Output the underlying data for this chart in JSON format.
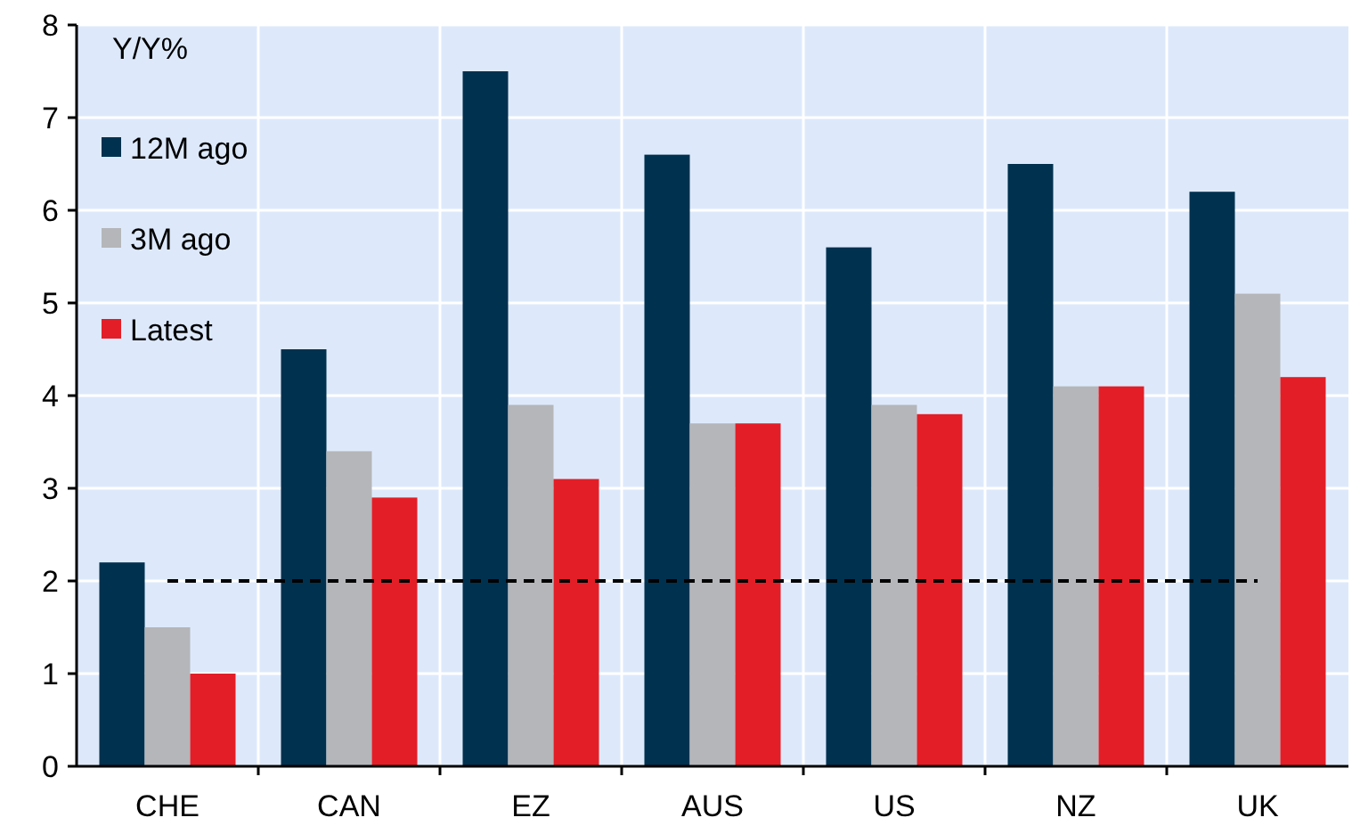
{
  "chart_data": {
    "type": "bar",
    "ylabel": "Y/Y%",
    "categories": [
      "CHE",
      "CAN",
      "EZ",
      "AUS",
      "US",
      "NZ",
      "UK"
    ],
    "series": [
      {
        "name": "12M ago",
        "color": "#00314f",
        "values": [
          2.2,
          4.5,
          7.5,
          6.6,
          5.6,
          6.5,
          6.2
        ]
      },
      {
        "name": "3M ago",
        "color": "#b5b6b9",
        "values": [
          1.5,
          3.4,
          3.9,
          3.7,
          3.9,
          4.1,
          5.1
        ]
      },
      {
        "name": "Latest",
        "color": "#e31e26",
        "values": [
          1.0,
          2.9,
          3.1,
          3.7,
          3.8,
          4.1,
          4.2
        ]
      }
    ],
    "ylim": [
      0,
      8
    ],
    "yticks": [
      0,
      1,
      2,
      3,
      4,
      5,
      6,
      7,
      8
    ],
    "grid": true,
    "legend": "top left",
    "ref_lines": [
      {
        "axis": "y",
        "value": 2,
        "color": "#000000",
        "line_style": "dashed"
      }
    ]
  }
}
